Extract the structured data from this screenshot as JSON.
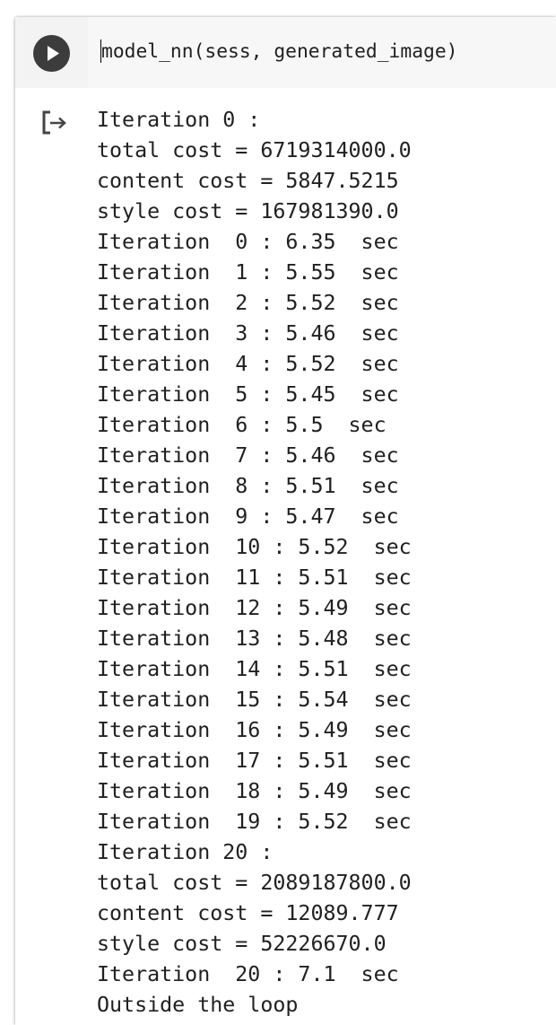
{
  "cell": {
    "code": "model_nn(sess, generated_image)",
    "run_button_icon": "play-icon",
    "output_icon": "output-redirect-icon"
  },
  "output": {
    "lines": [
      "Iteration 0 :",
      "total cost = 6719314000.0",
      "content cost = 5847.5215",
      "style cost = 167981390.0",
      "Iteration  0 : 6.35  sec",
      "Iteration  1 : 5.55  sec",
      "Iteration  2 : 5.52  sec",
      "Iteration  3 : 5.46  sec",
      "Iteration  4 : 5.52  sec",
      "Iteration  5 : 5.45  sec",
      "Iteration  6 : 5.5  sec",
      "Iteration  7 : 5.46  sec",
      "Iteration  8 : 5.51  sec",
      "Iteration  9 : 5.47  sec",
      "Iteration  10 : 5.52  sec",
      "Iteration  11 : 5.51  sec",
      "Iteration  12 : 5.49  sec",
      "Iteration  13 : 5.48  sec",
      "Iteration  14 : 5.51  sec",
      "Iteration  15 : 5.54  sec",
      "Iteration  16 : 5.49  sec",
      "Iteration  17 : 5.51  sec",
      "Iteration  18 : 5.49  sec",
      "Iteration  19 : 5.52  sec",
      "Iteration 20 :",
      "total cost = 2089187800.0",
      "content cost = 12089.777",
      "style cost = 52226670.0",
      "Iteration  20 : 7.1  sec",
      "Outside the loop"
    ]
  }
}
